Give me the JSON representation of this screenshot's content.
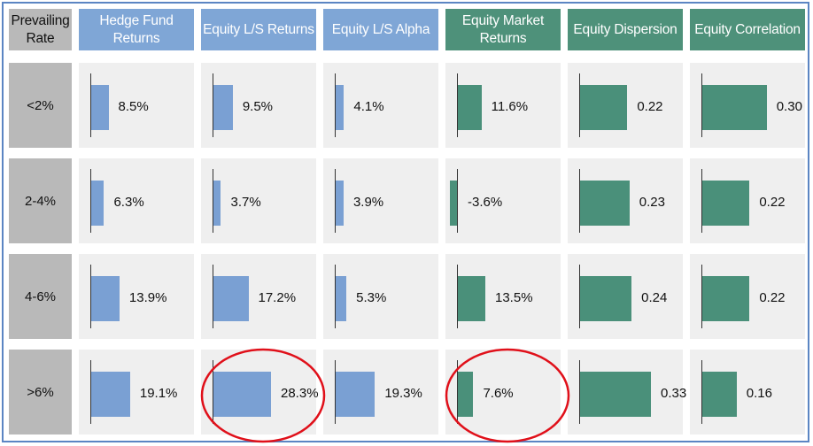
{
  "chart_data": {
    "type": "table",
    "row_header": "Prevailing Rate",
    "columns": [
      {
        "label": "Hedge Fund Returns",
        "color": "#7aa0d3"
      },
      {
        "label": "Equity L/S Returns",
        "color": "#7aa0d3"
      },
      {
        "label": "Equity L/S Alpha",
        "color": "#7aa0d3"
      },
      {
        "label": "Equity Market Returns",
        "color": "#4a907a"
      },
      {
        "label": "Equity Dispersion",
        "color": "#4a907a"
      },
      {
        "label": "Equity Correlation",
        "color": "#4a907a"
      }
    ],
    "rows": [
      {
        "label": "<2%",
        "values": [
          8.5,
          9.5,
          4.1,
          11.6,
          0.22,
          0.3
        ],
        "display": [
          "8.5%",
          "9.5%",
          "4.1%",
          "11.6%",
          "0.22",
          "0.30"
        ]
      },
      {
        "label": "2-4%",
        "values": [
          6.3,
          3.7,
          3.9,
          -3.6,
          0.23,
          0.22
        ],
        "display": [
          "6.3%",
          "3.7%",
          "3.9%",
          "-3.6%",
          "0.23",
          "0.22"
        ]
      },
      {
        "label": "4-6%",
        "values": [
          13.9,
          17.2,
          5.3,
          13.5,
          0.24,
          0.22
        ],
        "display": [
          "13.9%",
          "17.2%",
          "5.3%",
          "13.5%",
          "0.24",
          "0.22"
        ]
      },
      {
        "label": ">6%",
        "values": [
          19.1,
          28.3,
          19.3,
          7.6,
          0.33,
          0.16
        ],
        "display": [
          "19.1%",
          "28.3%",
          "19.3%",
          "7.6%",
          "0.33",
          "0.16"
        ]
      }
    ],
    "highlighted_cells": [
      {
        "row": ">6%",
        "column": "Equity L/S Returns"
      },
      {
        "row": ">6%",
        "column": "Equity Market Returns"
      }
    ],
    "highlight_color": "#e0101a"
  }
}
